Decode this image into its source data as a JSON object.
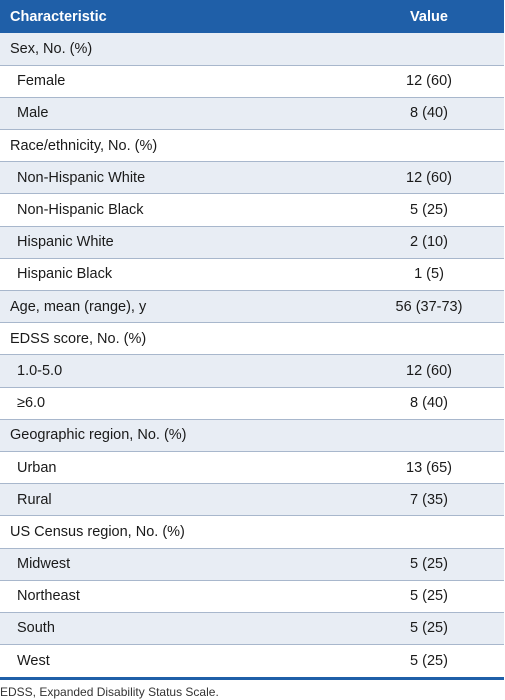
{
  "table": {
    "headers": {
      "characteristic": "Characteristic",
      "value": "Value"
    },
    "rows": [
      {
        "label": "Sex, No. (%)",
        "value": "",
        "indent": false
      },
      {
        "label": "Female",
        "value": "12 (60)",
        "indent": true
      },
      {
        "label": "Male",
        "value": "8 (40)",
        "indent": true
      },
      {
        "label": "Race/ethnicity, No. (%)",
        "value": "",
        "indent": false
      },
      {
        "label": "Non-Hispanic White",
        "value": "12 (60)",
        "indent": true
      },
      {
        "label": "Non-Hispanic Black",
        "value": "5 (25)",
        "indent": true
      },
      {
        "label": "Hispanic White",
        "value": "2 (10)",
        "indent": true
      },
      {
        "label": "Hispanic Black",
        "value": "1 (5)",
        "indent": true
      },
      {
        "label": "Age, mean (range), y",
        "value": "56 (37-73)",
        "indent": false
      },
      {
        "label": "EDSS score, No. (%)",
        "value": "",
        "indent": false
      },
      {
        "label": "1.0-5.0",
        "value": "12 (60)",
        "indent": true
      },
      {
        "label": "≥6.0",
        "value": "8 (40)",
        "indent": true
      },
      {
        "label": "Geographic region, No. (%)",
        "value": "",
        "indent": false
      },
      {
        "label": "Urban",
        "value": "13 (65)",
        "indent": true
      },
      {
        "label": "Rural",
        "value": "7 (35)",
        "indent": true
      },
      {
        "label": "US Census region, No. (%)",
        "value": "",
        "indent": false
      },
      {
        "label": "Midwest",
        "value": "5 (25)",
        "indent": true
      },
      {
        "label": "Northeast",
        "value": "5 (25)",
        "indent": true
      },
      {
        "label": "South",
        "value": "5 (25)",
        "indent": true
      },
      {
        "label": "West",
        "value": "5 (25)",
        "indent": true
      }
    ]
  },
  "footnote": "EDSS, Expanded Disability Status Scale.",
  "colors": {
    "header_bg": "#1f5fa8",
    "shade_row": "#e8edf4"
  }
}
